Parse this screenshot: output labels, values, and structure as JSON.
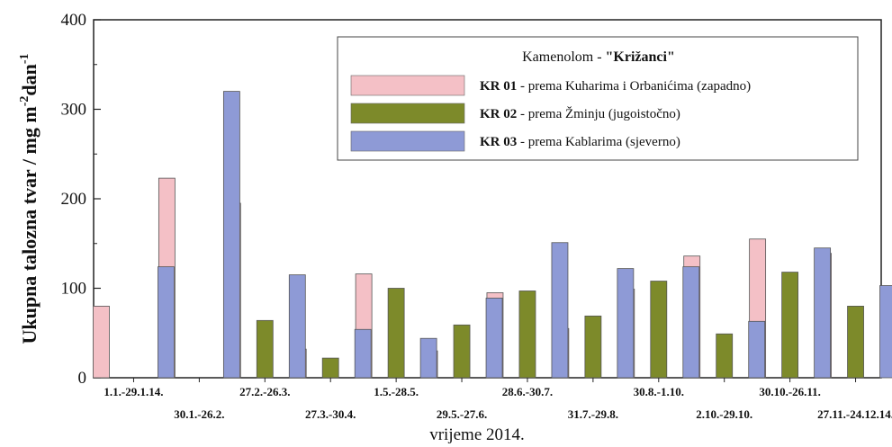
{
  "chart_data": {
    "type": "bar",
    "ylabel_main": "Ukupna talozna tvar / mg m",
    "ylabel_sup1": "-2",
    "ylabel_mid": "dan",
    "ylabel_sup2": "-1",
    "xlabel": "vrijeme 2014.",
    "ylim": [
      0,
      400
    ],
    "yticks": [
      0,
      100,
      200,
      300,
      400
    ],
    "categories": [
      "1.1.-29.1.14.",
      "30.1.-26.2.",
      "27.2.-26.3.",
      "27.3.-30.4.",
      "1.5.-28.5.",
      "29.5.-27.6.",
      "28.6.-30.7.",
      "31.7.-29.8.",
      "30.8.-1.10.",
      "2.10.-29.10.",
      "30.10.-26.11.",
      "27.11.-24.12.14."
    ],
    "series": [
      {
        "name_bold": "KR 01",
        "name_rest": " - prema Kuharima i Orbanićima (zapadno)",
        "color": "#f4c0c6",
        "values": [
          80,
          223,
          195,
          32,
          116,
          30,
          95,
          55,
          99,
          136,
          155,
          139
        ]
      },
      {
        "name_bold": "KR 02",
        "name_rest": " - prema Žminju (jugoistočno)",
        "color": "#7d8a2a",
        "values": [
          0,
          0,
          64,
          22,
          100,
          59,
          97,
          69,
          108,
          49,
          118,
          80
        ]
      },
      {
        "name_bold": "KR 03",
        "name_rest": " - prema Kablarima (sjeverno)",
        "color": "#8e9ad6",
        "values": [
          124,
          320,
          115,
          54,
          44,
          89,
          151,
          122,
          124,
          63,
          145,
          103
        ]
      }
    ],
    "legend_title_prefix": "Kamenolom - ",
    "legend_title_bold": "\"Križanci\"",
    "legend_position": "top-right",
    "grid": false
  }
}
